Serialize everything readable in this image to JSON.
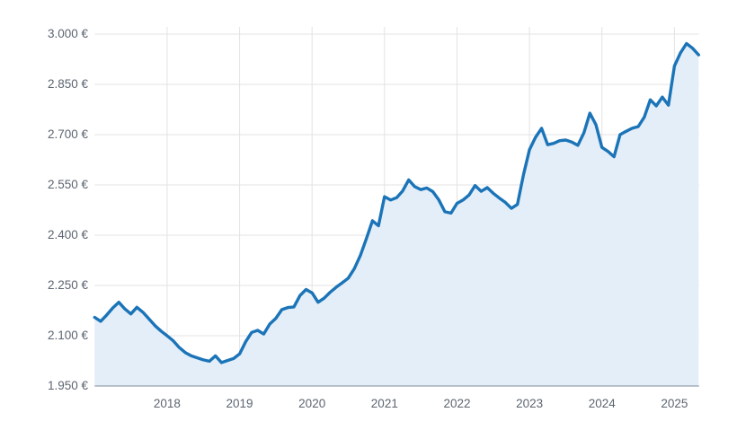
{
  "chart": {
    "colors": {
      "line": "#1b74b8",
      "area_fill": "#e4eef8",
      "grid": "#e3e3e3",
      "axis_line": "#97a1ad",
      "tick_label": "#5c6570",
      "background": "#ffffff"
    }
  },
  "chart_data": {
    "type": "area",
    "title": "",
    "xlabel": "",
    "ylabel": "",
    "currency": "EUR",
    "grid": true,
    "legend_position": "none",
    "y_ticks": [
      {
        "value": 3000,
        "label": "3.000 €"
      },
      {
        "value": 2850,
        "label": "2.850 €"
      },
      {
        "value": 2700,
        "label": "2.700 €"
      },
      {
        "value": 2550,
        "label": "2.550 €"
      },
      {
        "value": 2400,
        "label": "2.400 €"
      },
      {
        "value": 2250,
        "label": "2.250 €"
      },
      {
        "value": 2100,
        "label": "2.100 €"
      },
      {
        "value": 1950,
        "label": "1.950 €"
      }
    ],
    "ylim": [
      1950,
      3000
    ],
    "x_ticks": [
      "2018",
      "2019",
      "2020",
      "2021",
      "2022",
      "2023",
      "2024",
      "2025"
    ],
    "xlim_years": [
      2017.0,
      2025.34
    ],
    "series": [
      {
        "name": "price-eur",
        "start_year": 2017,
        "start_month": 1,
        "interval": "monthly",
        "values": [
          2155,
          2143,
          2162,
          2183,
          2200,
          2180,
          2165,
          2185,
          2170,
          2150,
          2130,
          2114,
          2100,
          2085,
          2065,
          2050,
          2040,
          2034,
          2028,
          2024,
          2040,
          2020,
          2026,
          2032,
          2046,
          2082,
          2110,
          2116,
          2105,
          2135,
          2152,
          2178,
          2184,
          2186,
          2220,
          2238,
          2228,
          2200,
          2212,
          2230,
          2245,
          2258,
          2272,
          2300,
          2340,
          2390,
          2443,
          2428,
          2515,
          2505,
          2512,
          2532,
          2565,
          2545,
          2536,
          2541,
          2530,
          2505,
          2470,
          2466,
          2495,
          2505,
          2520,
          2548,
          2531,
          2542,
          2525,
          2511,
          2498,
          2480,
          2492,
          2580,
          2655,
          2692,
          2719,
          2670,
          2674,
          2682,
          2684,
          2678,
          2668,
          2705,
          2764,
          2730,
          2662,
          2650,
          2634,
          2700,
          2710,
          2719,
          2724,
          2752,
          2804,
          2786,
          2812,
          2788,
          2905,
          2944,
          2972,
          2958,
          2938
        ]
      }
    ]
  }
}
